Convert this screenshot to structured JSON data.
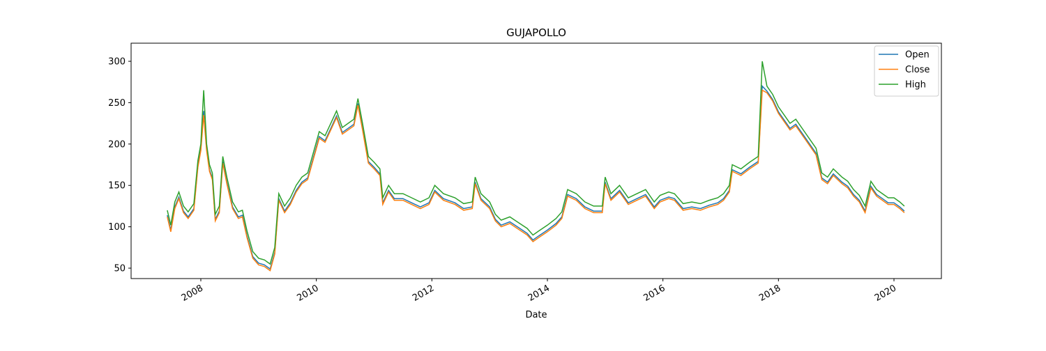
{
  "chart_data": {
    "type": "line",
    "title": "GUJAPOLLO",
    "xlabel": "Date",
    "x": [
      2007.42,
      2007.48,
      2007.55,
      2007.62,
      2007.7,
      2007.78,
      2007.88,
      2007.95,
      2008.0,
      2008.05,
      2008.1,
      2008.15,
      2008.2,
      2008.25,
      2008.32,
      2008.38,
      2008.45,
      2008.55,
      2008.65,
      2008.72,
      2008.8,
      2008.9,
      2009.0,
      2009.1,
      2009.2,
      2009.28,
      2009.35,
      2009.45,
      2009.55,
      2009.65,
      2009.75,
      2009.85,
      2009.95,
      2010.05,
      2010.15,
      2010.25,
      2010.35,
      2010.45,
      2010.55,
      2010.65,
      2010.72,
      2010.8,
      2010.9,
      2011.0,
      2011.1,
      2011.15,
      2011.25,
      2011.35,
      2011.5,
      2011.65,
      2011.8,
      2011.95,
      2012.05,
      2012.2,
      2012.4,
      2012.55,
      2012.7,
      2012.75,
      2012.85,
      2013.0,
      2013.1,
      2013.2,
      2013.35,
      2013.5,
      2013.65,
      2013.75,
      2013.85,
      2014.0,
      2014.15,
      2014.25,
      2014.35,
      2014.5,
      2014.65,
      2014.8,
      2014.95,
      2015.0,
      2015.1,
      2015.25,
      2015.4,
      2015.55,
      2015.7,
      2015.85,
      2015.95,
      2016.1,
      2016.2,
      2016.35,
      2016.5,
      2016.65,
      2016.8,
      2016.95,
      2017.05,
      2017.15,
      2017.2,
      2017.35,
      2017.5,
      2017.65,
      2017.72,
      2017.8,
      2017.9,
      2018.0,
      2018.1,
      2018.2,
      2018.3,
      2018.45,
      2018.55,
      2018.65,
      2018.75,
      2018.85,
      2018.95,
      2019.1,
      2019.2,
      2019.3,
      2019.4,
      2019.5,
      2019.6,
      2019.7,
      2019.8,
      2019.9,
      2020.0,
      2020.1,
      2020.18
    ],
    "series": [
      {
        "name": "Open",
        "color": "#1f77b4",
        "values": [
          114,
          96,
          124,
          136,
          119,
          112,
          122,
          174,
          194,
          240,
          194,
          169,
          159,
          109,
          119,
          179,
          154,
          124,
          112,
          114,
          89,
          64,
          56,
          54,
          49,
          69,
          134,
          119,
          129,
          144,
          154,
          159,
          184,
          209,
          204,
          219,
          234,
          214,
          219,
          224,
          249,
          219,
          179,
          172,
          164,
          129,
          144,
          134,
          134,
          129,
          124,
          129,
          144,
          134,
          129,
          122,
          124,
          154,
          134,
          124,
          109,
          102,
          106,
          99,
          92,
          84,
          89,
          96,
          104,
          112,
          139,
          134,
          124,
          119,
          119,
          154,
          134,
          144,
          129,
          134,
          139,
          124,
          132,
          136,
          134,
          122,
          124,
          122,
          126,
          129,
          134,
          144,
          169,
          164,
          172,
          179,
          270,
          264,
          254,
          239,
          229,
          219,
          224,
          209,
          199,
          189,
          159,
          154,
          164,
          154,
          149,
          139,
          132,
          119,
          149,
          139,
          134,
          129,
          129,
          124,
          119
        ]
      },
      {
        "name": "Close",
        "color": "#ff7f0e",
        "values": [
          112,
          94,
          122,
          134,
          117,
          110,
          120,
          172,
          192,
          235,
          192,
          167,
          157,
          107,
          117,
          177,
          152,
          122,
          110,
          112,
          87,
          62,
          54,
          52,
          47,
          67,
          132,
          117,
          127,
          142,
          152,
          157,
          182,
          207,
          202,
          217,
          232,
          212,
          217,
          222,
          247,
          217,
          177,
          170,
          162,
          127,
          142,
          132,
          132,
          127,
          122,
          127,
          142,
          132,
          127,
          120,
          122,
          152,
          132,
          122,
          107,
          100,
          104,
          97,
          90,
          82,
          87,
          94,
          102,
          110,
          137,
          132,
          122,
          117,
          117,
          152,
          132,
          142,
          127,
          132,
          137,
          122,
          130,
          134,
          132,
          120,
          122,
          120,
          124,
          127,
          132,
          142,
          167,
          162,
          170,
          177,
          265,
          262,
          252,
          237,
          227,
          217,
          222,
          207,
          197,
          187,
          157,
          152,
          162,
          152,
          147,
          137,
          130,
          117,
          147,
          137,
          132,
          127,
          127,
          122,
          117
        ]
      },
      {
        "name": "High",
        "color": "#2ca02c",
        "values": [
          120,
          102,
          130,
          142,
          125,
          118,
          128,
          180,
          200,
          265,
          200,
          175,
          165,
          115,
          125,
          185,
          160,
          130,
          118,
          120,
          95,
          70,
          62,
          60,
          55,
          75,
          140,
          125,
          135,
          150,
          160,
          165,
          190,
          215,
          210,
          225,
          240,
          220,
          225,
          230,
          255,
          225,
          185,
          178,
          170,
          135,
          150,
          140,
          140,
          135,
          130,
          135,
          150,
          140,
          135,
          128,
          130,
          160,
          140,
          130,
          115,
          108,
          112,
          105,
          98,
          90,
          95,
          102,
          110,
          118,
          145,
          140,
          130,
          125,
          125,
          160,
          140,
          150,
          135,
          140,
          145,
          130,
          138,
          142,
          140,
          128,
          130,
          128,
          132,
          135,
          140,
          150,
          175,
          170,
          178,
          185,
          300,
          270,
          260,
          245,
          235,
          225,
          230,
          215,
          205,
          195,
          165,
          160,
          170,
          160,
          155,
          145,
          138,
          125,
          155,
          145,
          140,
          135,
          135,
          130,
          125
        ]
      }
    ],
    "xlim": [
      2006.793,
      2020.821
    ],
    "xticks": [
      2008,
      2010,
      2012,
      2014,
      2016,
      2018,
      2020
    ],
    "ylim": [
      37.4,
      321.9
    ],
    "yticks": [
      50,
      100,
      150,
      200,
      250,
      300
    ],
    "legend": "upper right"
  }
}
